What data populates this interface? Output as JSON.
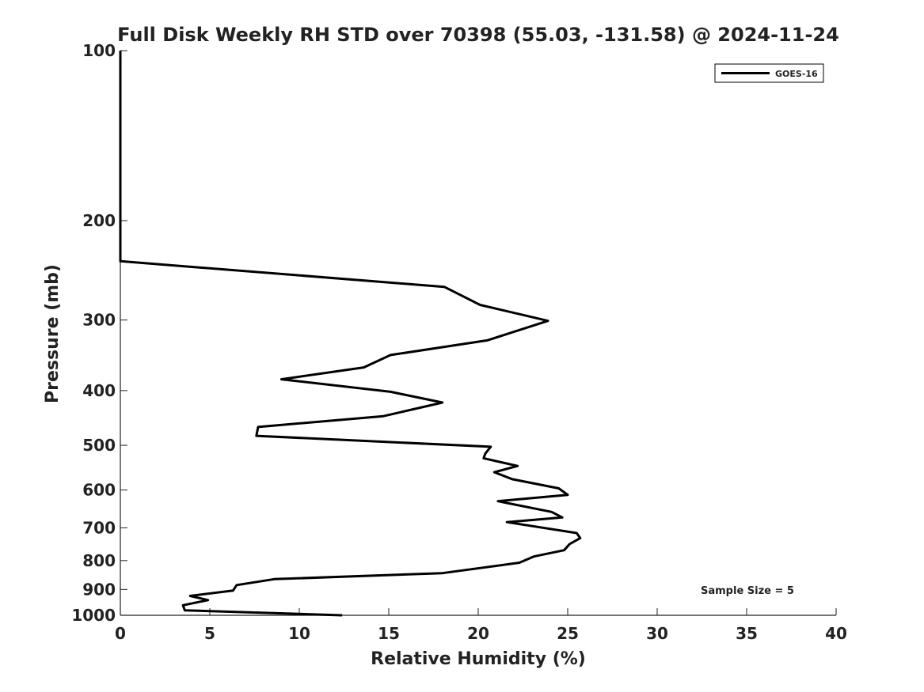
{
  "chart_data": {
    "type": "line",
    "title": "Full Disk Weekly RH STD over 70398 (55.03, -131.58) @ 2024-11-24",
    "xlabel": "Relative Humidity (%)",
    "ylabel": "Pressure (mb)",
    "xlim": [
      0,
      40
    ],
    "ylim": [
      100,
      1000
    ],
    "y_scale": "log",
    "y_inverted": true,
    "x_ticks": [
      0,
      5,
      10,
      15,
      20,
      25,
      30,
      35,
      40
    ],
    "y_ticks": [
      100,
      200,
      300,
      400,
      500,
      600,
      700,
      800,
      900,
      1000
    ],
    "grid": false,
    "legend_position": "top-right",
    "annotation": "Sample Size = 5",
    "series": [
      {
        "name": "GOES-16",
        "color": "#000000",
        "points": [
          [
            0,
            100
          ],
          [
            0,
            150
          ],
          [
            0,
            200
          ],
          [
            0,
            236
          ],
          [
            18.1,
            262
          ],
          [
            20.1,
            282
          ],
          [
            23.9,
            301
          ],
          [
            20.5,
            326
          ],
          [
            15.1,
            346
          ],
          [
            13.6,
            364
          ],
          [
            9.0,
            382
          ],
          [
            15.1,
            402
          ],
          [
            18.0,
            420
          ],
          [
            14.7,
            444
          ],
          [
            7.7,
            464
          ],
          [
            7.6,
            481
          ],
          [
            20.7,
            503
          ],
          [
            20.4,
            517
          ],
          [
            20.3,
            527
          ],
          [
            22.2,
            544
          ],
          [
            20.9,
            558
          ],
          [
            21.9,
            574
          ],
          [
            24.5,
            596
          ],
          [
            25.0,
            612
          ],
          [
            21.1,
            628
          ],
          [
            24.1,
            656
          ],
          [
            24.7,
            671
          ],
          [
            21.6,
            684
          ],
          [
            25.5,
            715
          ],
          [
            25.7,
            730
          ],
          [
            25.1,
            748
          ],
          [
            24.8,
            767
          ],
          [
            23.1,
            787
          ],
          [
            22.3,
            807
          ],
          [
            18.0,
            842
          ],
          [
            8.6,
            863
          ],
          [
            6.5,
            884
          ],
          [
            6.3,
            904
          ],
          [
            3.9,
            924
          ],
          [
            4.9,
            940
          ],
          [
            3.5,
            960
          ],
          [
            3.6,
            980
          ],
          [
            12.4,
            1000
          ]
        ]
      }
    ]
  }
}
